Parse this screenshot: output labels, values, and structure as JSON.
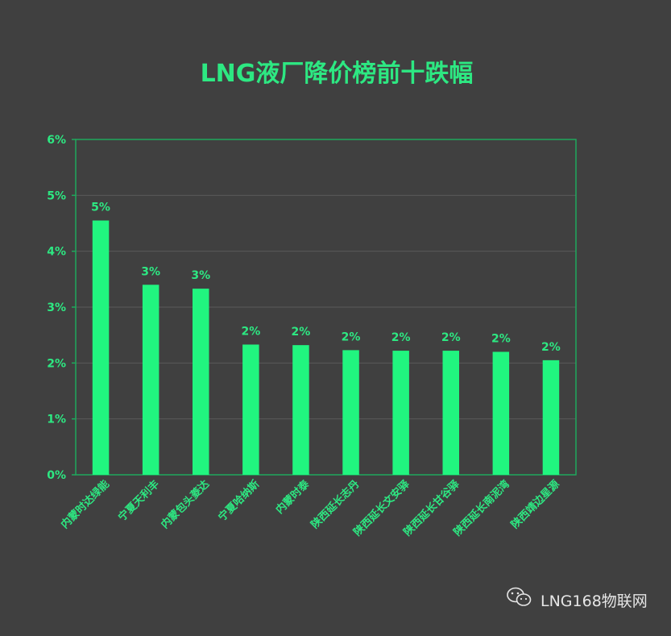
{
  "colors": {
    "background": "#404040",
    "bar": "#21f57f",
    "text": "#2de882",
    "frame": "#1fa85c",
    "grid": "#5a5a5a",
    "watermark": "#e6e6e6"
  },
  "watermark": {
    "icon": "wechat-icon",
    "text": "LNG168物联网"
  },
  "chart_data": {
    "type": "bar",
    "title": "LNG液厂降价榜前十跌幅",
    "categories": [
      "内蒙时达绿能",
      "宁夏天利丰",
      "内蒙包头菱达",
      "宁夏哈纳斯",
      "内蒙时泰",
      "陕西延长志丹",
      "陕西延长文安驿",
      "陕西延长甘谷驿",
      "陕西延长南泥湾",
      "陕西靖边星源"
    ],
    "values": [
      4.55,
      3.4,
      3.33,
      2.33,
      2.32,
      2.23,
      2.22,
      2.22,
      2.2,
      2.05
    ],
    "data_labels": [
      "5%",
      "3%",
      "3%",
      "2%",
      "2%",
      "2%",
      "2%",
      "2%",
      "2%",
      "2%"
    ],
    "yticks": [
      "0%",
      "1%",
      "2%",
      "3%",
      "4%",
      "5%",
      "6%"
    ],
    "ylim": [
      0,
      6
    ],
    "grid": true,
    "legend": "none"
  }
}
